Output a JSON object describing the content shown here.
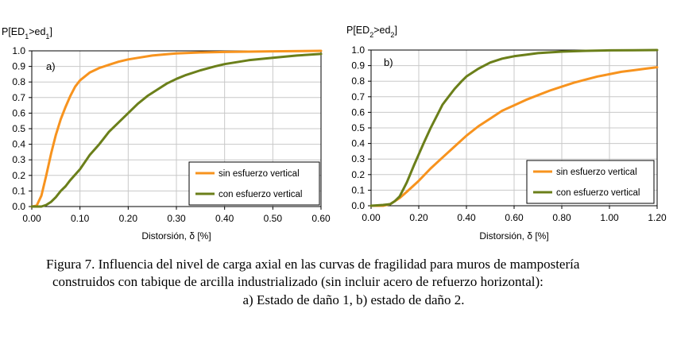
{
  "caption": {
    "line1": "Figura 7. Influencia del nivel de carga axial en las curvas de fragilidad para muros de mampostería",
    "line2": "construidos con tabique de arcilla industrializado (sin incluir acero de refuerzo horizontal):",
    "line3": "a) Estado de daño 1, b) estado de daño 2."
  },
  "colors": {
    "orange": "#f7931e",
    "olive": "#6b7f1a",
    "grid": "#c8c8c8"
  },
  "chart_data": [
    {
      "type": "line",
      "panel": "a)",
      "ylabel": {
        "p": "P[ED",
        "sub1": "1",
        "mid": ">ed",
        "sub2": "1",
        "end": "]"
      },
      "xlabel": "Distorsión, δ [%]",
      "xlim": [
        0,
        0.6
      ],
      "ylim": [
        0,
        1
      ],
      "xticks": [
        "0.00",
        "0.10",
        "0.20",
        "0.30",
        "0.40",
        "0.50",
        "0.60"
      ],
      "yticks": [
        "0.0",
        "0.1",
        "0.2",
        "0.3",
        "0.4",
        "0.5",
        "0.6",
        "0.7",
        "0.8",
        "0.9",
        "1.0"
      ],
      "grid": true,
      "legend_position": "bottom-right",
      "series": [
        {
          "name": "sin esfuerzo vertical",
          "color": "#f7931e",
          "x": [
            0.0,
            0.01,
            0.02,
            0.03,
            0.04,
            0.05,
            0.06,
            0.07,
            0.08,
            0.09,
            0.1,
            0.12,
            0.14,
            0.16,
            0.18,
            0.2,
            0.22,
            0.25,
            0.28,
            0.3,
            0.35,
            0.4,
            0.5,
            0.6
          ],
          "y": [
            0.0,
            0.005,
            0.07,
            0.2,
            0.34,
            0.46,
            0.56,
            0.64,
            0.71,
            0.77,
            0.81,
            0.86,
            0.89,
            0.91,
            0.93,
            0.945,
            0.955,
            0.97,
            0.978,
            0.983,
            0.99,
            0.993,
            0.997,
            1.0
          ]
        },
        {
          "name": "con esfuerzo vertical",
          "color": "#6b7f1a",
          "x": [
            0.0,
            0.02,
            0.03,
            0.04,
            0.05,
            0.06,
            0.07,
            0.08,
            0.1,
            0.12,
            0.14,
            0.16,
            0.18,
            0.2,
            0.22,
            0.24,
            0.26,
            0.28,
            0.3,
            0.32,
            0.35,
            0.38,
            0.4,
            0.45,
            0.5,
            0.55,
            0.6
          ],
          "y": [
            0.0,
            0.0,
            0.01,
            0.03,
            0.06,
            0.1,
            0.13,
            0.17,
            0.24,
            0.33,
            0.4,
            0.48,
            0.54,
            0.6,
            0.66,
            0.71,
            0.75,
            0.79,
            0.82,
            0.845,
            0.875,
            0.9,
            0.915,
            0.94,
            0.955,
            0.97,
            0.98
          ]
        }
      ]
    },
    {
      "type": "line",
      "panel": "b)",
      "ylabel": {
        "p": "P[ED",
        "sub1": "2",
        "mid": ">ed",
        "sub2": "2",
        "end": "]"
      },
      "xlabel": "Distorsión, δ [%]",
      "xlim": [
        0,
        1.2
      ],
      "ylim": [
        0,
        1
      ],
      "xticks": [
        "0.00",
        "0.20",
        "0.40",
        "0.60",
        "0.80",
        "1.00",
        "1.20"
      ],
      "yticks": [
        "0.0",
        "0.1",
        "0.2",
        "0.3",
        "0.4",
        "0.5",
        "0.6",
        "0.7",
        "0.8",
        "0.9",
        "1.0"
      ],
      "grid": true,
      "legend_position": "bottom-right",
      "series": [
        {
          "name": "sin esfuerzo vertical",
          "color": "#f7931e",
          "x": [
            0.0,
            0.05,
            0.08,
            0.1,
            0.12,
            0.15,
            0.2,
            0.25,
            0.3,
            0.35,
            0.4,
            0.45,
            0.5,
            0.55,
            0.6,
            0.65,
            0.7,
            0.75,
            0.8,
            0.85,
            0.9,
            0.95,
            1.0,
            1.05,
            1.1,
            1.15,
            1.2
          ],
          "y": [
            0.0,
            0.0,
            0.01,
            0.03,
            0.05,
            0.09,
            0.16,
            0.24,
            0.31,
            0.38,
            0.45,
            0.51,
            0.56,
            0.61,
            0.645,
            0.68,
            0.71,
            0.74,
            0.765,
            0.79,
            0.81,
            0.83,
            0.845,
            0.86,
            0.87,
            0.88,
            0.89
          ]
        },
        {
          "name": "con esfuerzo vertical",
          "color": "#6b7f1a",
          "x": [
            0.0,
            0.05,
            0.08,
            0.1,
            0.12,
            0.15,
            0.18,
            0.2,
            0.22,
            0.25,
            0.28,
            0.3,
            0.33,
            0.35,
            0.38,
            0.4,
            0.45,
            0.5,
            0.55,
            0.6,
            0.65,
            0.7,
            0.8,
            0.9,
            1.0,
            1.1,
            1.2
          ],
          "y": [
            0.0,
            0.005,
            0.01,
            0.03,
            0.06,
            0.15,
            0.26,
            0.33,
            0.4,
            0.5,
            0.59,
            0.65,
            0.71,
            0.75,
            0.8,
            0.83,
            0.88,
            0.92,
            0.945,
            0.96,
            0.97,
            0.98,
            0.99,
            0.995,
            0.998,
            0.999,
            1.0
          ]
        }
      ]
    }
  ]
}
